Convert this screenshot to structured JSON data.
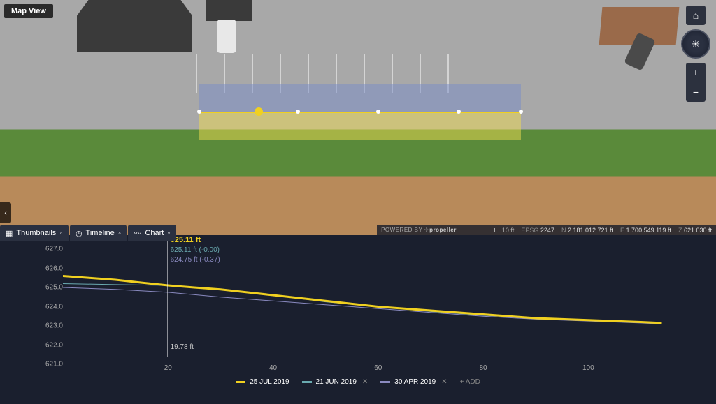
{
  "map": {
    "badge": "Map View"
  },
  "tools": {
    "home_tip": "Home",
    "compass_tip": "Compass",
    "zoom_in": "+",
    "zoom_out": "−"
  },
  "collapse": "‹",
  "tabs": [
    {
      "icon": "▦",
      "label": "Thumbnails",
      "caret": "˄"
    },
    {
      "icon": "◷",
      "label": "Timeline",
      "caret": "˄"
    },
    {
      "icon": "〰",
      "label": "Chart",
      "caret": "˅"
    }
  ],
  "status": {
    "powered_prefix": "POWERED BY",
    "brand": "propeller",
    "scale": "10 ft",
    "epsg_label": "EPSG",
    "epsg": "2247",
    "n_label": "N",
    "n": "2 181 012.721 ft",
    "e_label": "E",
    "e": "1 700 549.119 ft",
    "z_label": "Z",
    "z": "621.030 ft"
  },
  "chart": {
    "y_ticks": [
      627.0,
      626.0,
      625.0,
      624.0,
      623.0,
      622.0,
      621.0
    ],
    "y_min": 621.0,
    "y_max": 627.0,
    "x_ticks": [
      20,
      40,
      60,
      80,
      100
    ],
    "x_min": 0,
    "x_max": 115,
    "hover": {
      "primary": "625.11 ft",
      "s1": "625.11 ft (-0.00)",
      "s2": "624.75 ft (-0.37)",
      "x": "19.78 ft",
      "x_val": 19.78
    },
    "series": [
      {
        "label": "25 JUL 2019",
        "color": "#f0d020",
        "width": 3,
        "closable": false,
        "points": [
          [
            0,
            625.6
          ],
          [
            5,
            625.5
          ],
          [
            10,
            625.4
          ],
          [
            15,
            625.25
          ],
          [
            20,
            625.11
          ],
          [
            25,
            625.0
          ],
          [
            30,
            624.9
          ],
          [
            35,
            624.75
          ],
          [
            40,
            624.6
          ],
          [
            45,
            624.45
          ],
          [
            50,
            624.3
          ],
          [
            55,
            624.15
          ],
          [
            60,
            624.0
          ],
          [
            65,
            623.9
          ],
          [
            70,
            623.8
          ],
          [
            75,
            623.7
          ],
          [
            80,
            623.6
          ],
          [
            85,
            623.5
          ],
          [
            90,
            623.4
          ],
          [
            95,
            623.35
          ],
          [
            100,
            623.3
          ],
          [
            105,
            623.25
          ],
          [
            110,
            623.2
          ],
          [
            114,
            623.15
          ]
        ]
      },
      {
        "label": "21 JUN 2019",
        "color": "#6aaab0",
        "width": 1,
        "closable": true,
        "points": [
          [
            0,
            625.2
          ],
          [
            10,
            625.15
          ],
          [
            20,
            625.11
          ],
          [
            30,
            624.9
          ],
          [
            40,
            624.6
          ],
          [
            50,
            624.25
          ],
          [
            60,
            624.0
          ],
          [
            70,
            623.75
          ],
          [
            80,
            623.55
          ],
          [
            90,
            623.4
          ],
          [
            100,
            623.3
          ],
          [
            110,
            623.2
          ],
          [
            114,
            623.15
          ]
        ]
      },
      {
        "label": "30 APR 2019",
        "color": "#8a8ac0",
        "width": 1,
        "closable": true,
        "points": [
          [
            0,
            625.0
          ],
          [
            10,
            624.9
          ],
          [
            20,
            624.75
          ],
          [
            30,
            624.5
          ],
          [
            40,
            624.3
          ],
          [
            50,
            624.1
          ],
          [
            60,
            623.9
          ],
          [
            70,
            623.7
          ],
          [
            80,
            623.5
          ],
          [
            90,
            623.35
          ],
          [
            100,
            623.25
          ],
          [
            110,
            623.15
          ],
          [
            114,
            623.1
          ]
        ]
      }
    ],
    "add_label": "+ ADD"
  }
}
